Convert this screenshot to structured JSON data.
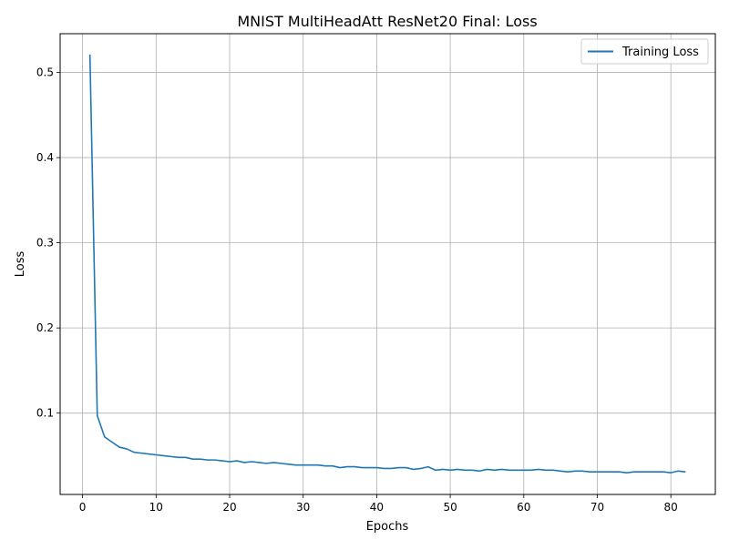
{
  "chart_data": {
    "type": "line",
    "title": "MNIST MultiHeadAtt ResNet20 Final: Loss",
    "xlabel": "Epochs",
    "ylabel": "Loss",
    "xlim": [
      -3.05,
      86.05
    ],
    "ylim": [
      0.0045,
      0.5455
    ],
    "xticks": [
      0,
      10,
      20,
      30,
      40,
      50,
      60,
      70,
      80
    ],
    "xtick_labels": [
      "0",
      "10",
      "20",
      "30",
      "40",
      "50",
      "60",
      "70",
      "80"
    ],
    "yticks": [
      0.1,
      0.2,
      0.3,
      0.4,
      0.5
    ],
    "ytick_labels": [
      "0.1",
      "0.2",
      "0.3",
      "0.4",
      "0.5"
    ],
    "grid": true,
    "legend_position": "top-right",
    "colors": {
      "series": "#1f77b4",
      "grid": "#b0b0b0",
      "axes": "#000000"
    },
    "series": [
      {
        "name": "Training Loss",
        "x": [
          1,
          2,
          3,
          4,
          5,
          6,
          7,
          8,
          9,
          10,
          11,
          12,
          13,
          14,
          15,
          16,
          17,
          18,
          19,
          20,
          21,
          22,
          23,
          24,
          25,
          26,
          27,
          28,
          29,
          30,
          31,
          32,
          33,
          34,
          35,
          36,
          37,
          38,
          39,
          40,
          41,
          42,
          43,
          44,
          45,
          46,
          47,
          48,
          49,
          50,
          51,
          52,
          53,
          54,
          55,
          56,
          57,
          58,
          59,
          60,
          61,
          62,
          63,
          64,
          65,
          66,
          67,
          68,
          69,
          70,
          71,
          72,
          73,
          74,
          75,
          76,
          77,
          78,
          79,
          80,
          81,
          82
        ],
        "values": [
          0.521,
          0.097,
          0.072,
          0.066,
          0.06,
          0.058,
          0.054,
          0.053,
          0.052,
          0.051,
          0.05,
          0.049,
          0.048,
          0.048,
          0.046,
          0.046,
          0.045,
          0.045,
          0.044,
          0.043,
          0.044,
          0.042,
          0.043,
          0.042,
          0.041,
          0.042,
          0.041,
          0.04,
          0.039,
          0.039,
          0.039,
          0.039,
          0.038,
          0.038,
          0.036,
          0.037,
          0.037,
          0.036,
          0.036,
          0.036,
          0.035,
          0.035,
          0.036,
          0.036,
          0.034,
          0.035,
          0.037,
          0.033,
          0.034,
          0.033,
          0.034,
          0.033,
          0.033,
          0.032,
          0.034,
          0.033,
          0.034,
          0.033,
          0.033,
          0.033,
          0.033,
          0.034,
          0.033,
          0.033,
          0.032,
          0.031,
          0.032,
          0.032,
          0.031,
          0.031,
          0.031,
          0.031,
          0.031,
          0.03,
          0.031,
          0.031,
          0.031,
          0.031,
          0.031,
          0.03,
          0.032,
          0.031
        ]
      }
    ]
  }
}
